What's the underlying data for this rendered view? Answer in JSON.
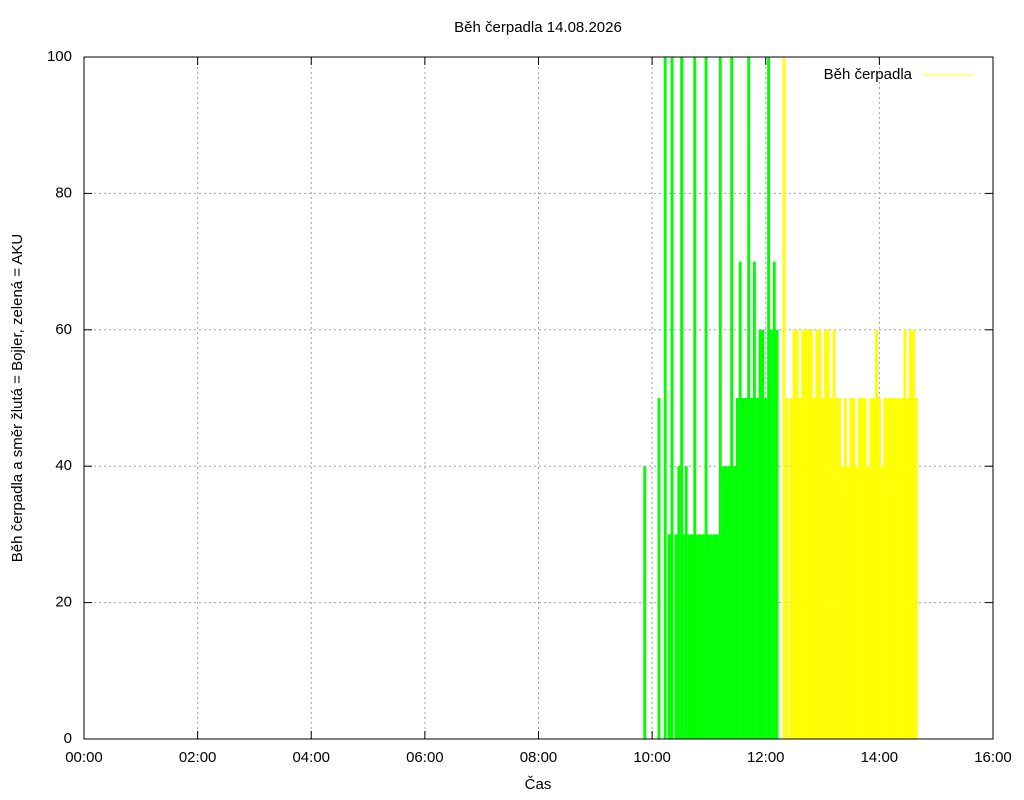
{
  "chart_data": {
    "type": "impulses",
    "title": "Běh čerpadla 14.08.2026",
    "x_label": "Čas",
    "y_label": "Běh čerpadla a směr žlutá = Bojler, zelená = AKU",
    "xlim": [
      0,
      16
    ],
    "ylim": [
      0,
      100
    ],
    "xticks": [
      {
        "value": 0,
        "label": "00:00"
      },
      {
        "value": 2,
        "label": "02:00"
      },
      {
        "value": 4,
        "label": "04:00"
      },
      {
        "value": 6,
        "label": "06:00"
      },
      {
        "value": 8,
        "label": "08:00"
      },
      {
        "value": 10,
        "label": "10:00"
      },
      {
        "value": 12,
        "label": "12:00"
      },
      {
        "value": 14,
        "label": "14:00"
      },
      {
        "value": 16,
        "label": "16:00"
      }
    ],
    "yticks": [
      0,
      20,
      40,
      60,
      80,
      100
    ],
    "grid": true,
    "legend": "top-right",
    "series": [
      {
        "color": "#00ff00",
        "x": [
          9.87,
          10.12,
          10.23,
          10.3,
          10.35,
          10.42,
          10.47,
          10.52,
          10.55,
          10.6,
          10.65,
          10.7,
          10.75,
          10.8,
          10.85,
          10.9,
          10.95,
          11.0,
          11.05,
          11.1,
          11.15,
          11.2,
          11.25,
          11.3,
          11.35,
          11.4,
          11.45,
          11.5,
          11.55,
          11.6,
          11.65,
          11.7,
          11.75,
          11.8,
          11.85,
          11.9,
          11.95,
          12.0,
          12.05,
          12.1,
          12.15,
          12.2
        ],
        "values": [
          40,
          50,
          100,
          30,
          100,
          30,
          40,
          100,
          30,
          40,
          30,
          30,
          100,
          30,
          30,
          30,
          100,
          30,
          30,
          30,
          30,
          100,
          40,
          40,
          40,
          100,
          40,
          50,
          70,
          50,
          50,
          100,
          50,
          70,
          50,
          60,
          60,
          50,
          100,
          60,
          70,
          60
        ]
      },
      {
        "name": "Běh čerpadla",
        "color": "#ffff00",
        "x": [
          12.32,
          12.38,
          12.45,
          12.5,
          12.55,
          12.6,
          12.65,
          12.7,
          12.75,
          12.8,
          12.85,
          12.9,
          12.95,
          13.0,
          13.05,
          13.1,
          13.15,
          13.2,
          13.25,
          13.3,
          13.35,
          13.4,
          13.45,
          13.5,
          13.55,
          13.6,
          13.65,
          13.7,
          13.75,
          13.8,
          13.85,
          13.9,
          13.95,
          14.0,
          14.05,
          14.1,
          14.15,
          14.2,
          14.25,
          14.3,
          14.35,
          14.4,
          14.45,
          14.5,
          14.55,
          14.6,
          14.65
        ],
        "values": [
          100,
          50,
          50,
          60,
          60,
          50,
          60,
          60,
          60,
          60,
          50,
          60,
          60,
          50,
          60,
          60,
          50,
          60,
          50,
          50,
          40,
          50,
          40,
          50,
          50,
          40,
          50,
          50,
          50,
          40,
          50,
          50,
          60,
          50,
          40,
          50,
          50,
          50,
          50,
          50,
          50,
          50,
          60,
          50,
          60,
          60,
          50
        ]
      }
    ]
  }
}
